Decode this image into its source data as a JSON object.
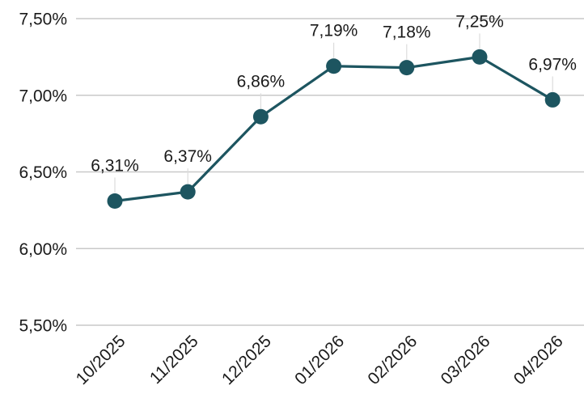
{
  "chart_data": {
    "type": "line",
    "title": "",
    "xlabel": "",
    "ylabel": "",
    "categories": [
      "10/2025",
      "11/2025",
      "12/2025",
      "01/2026",
      "02/2026",
      "03/2026",
      "04/2026"
    ],
    "series": [
      {
        "values": [
          6.31,
          6.37,
          6.86,
          7.19,
          7.18,
          7.25,
          6.97
        ],
        "data_labels": [
          "6,31%",
          "6,37%",
          "6,86%",
          "7,19%",
          "7,18%",
          "7,25%",
          "6,97%"
        ],
        "color": "#1d5560"
      }
    ],
    "ylim": [
      5.5,
      7.5
    ],
    "y_ticks": [
      5.5,
      6.0,
      6.5,
      7.0,
      7.5
    ],
    "y_tick_labels": [
      "5,50%",
      "6,00%",
      "6,50%",
      "7,00%",
      "7,50%"
    ],
    "grid": true,
    "legend": "none"
  }
}
